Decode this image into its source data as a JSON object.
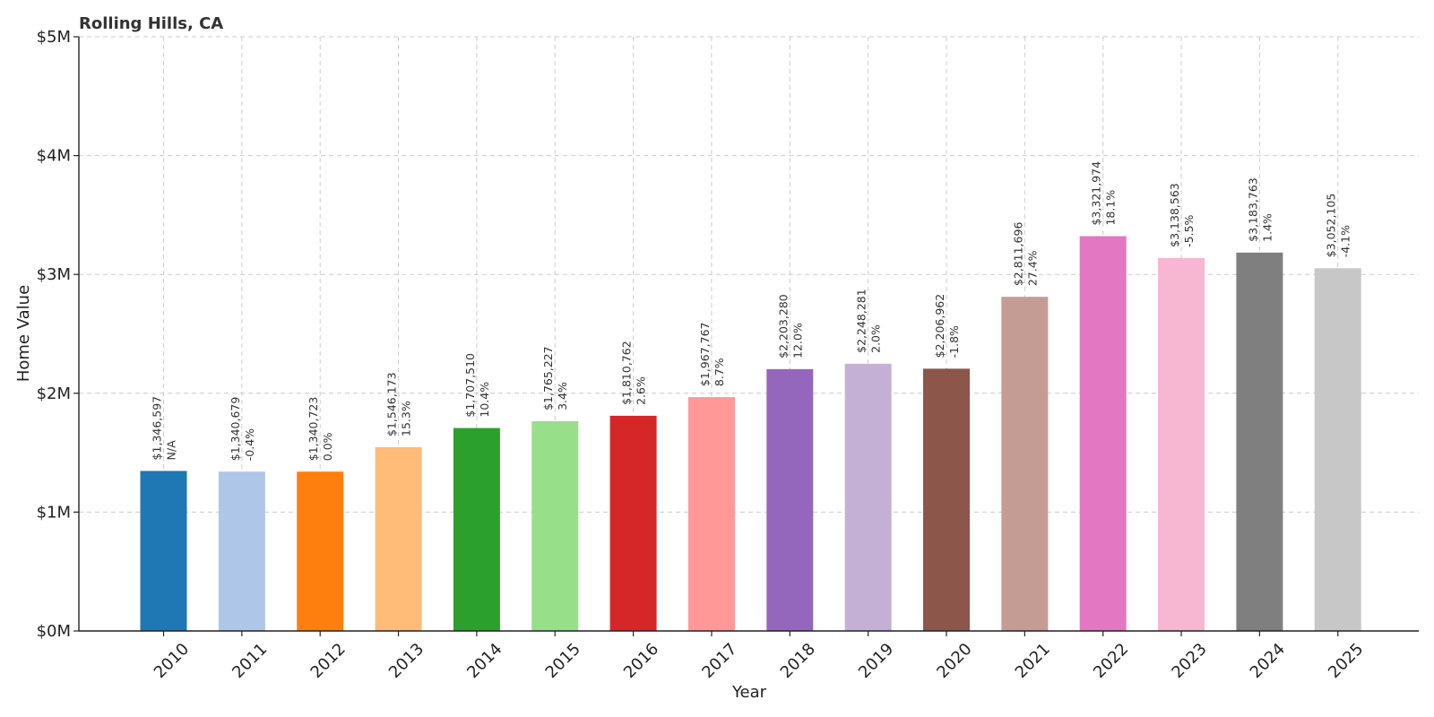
{
  "chart_data": {
    "type": "bar",
    "title": "Rolling Hills, CA",
    "xlabel": "Year",
    "ylabel": "Home Value",
    "ylim": [
      0,
      5000000
    ],
    "yticks": [
      0,
      1000000,
      2000000,
      3000000,
      4000000,
      5000000
    ],
    "ytick_labels": [
      "$0M",
      "$1M",
      "$2M",
      "$3M",
      "$4M",
      "$5M"
    ],
    "grid": true,
    "categories": [
      "2010",
      "2011",
      "2012",
      "2013",
      "2014",
      "2015",
      "2016",
      "2017",
      "2018",
      "2019",
      "2020",
      "2021",
      "2022",
      "2023",
      "2024",
      "2025"
    ],
    "values": [
      1346597,
      1340679,
      1340723,
      1546173,
      1707510,
      1765227,
      1810762,
      1967767,
      2203280,
      2248281,
      2206962,
      2811696,
      3321974,
      3138563,
      3183763,
      3052105
    ],
    "value_labels": [
      "$1,346,597",
      "$1,340,679",
      "$1,340,723",
      "$1,546,173",
      "$1,707,510",
      "$1,765,227",
      "$1,810,762",
      "$1,967,767",
      "$2,203,280",
      "$2,248,281",
      "$2,206,962",
      "$2,811,696",
      "$3,321,974",
      "$3,138,563",
      "$3,183,763",
      "$3,052,105"
    ],
    "change_labels": [
      "N/A",
      "-0.4%",
      "0.0%",
      "15.3%",
      "10.4%",
      "3.4%",
      "2.6%",
      "8.7%",
      "12.0%",
      "2.0%",
      "-1.8%",
      "27.4%",
      "18.1%",
      "-5.5%",
      "1.4%",
      "-4.1%"
    ],
    "colors": [
      "#1f77b4",
      "#aec7e8",
      "#ff7f0e",
      "#ffbb78",
      "#2ca02c",
      "#98df8a",
      "#d62728",
      "#ff9896",
      "#9467bd",
      "#c5b0d5",
      "#8c564b",
      "#c49c94",
      "#e377c2",
      "#f7b6d2",
      "#7f7f7f",
      "#c7c7c7"
    ]
  }
}
